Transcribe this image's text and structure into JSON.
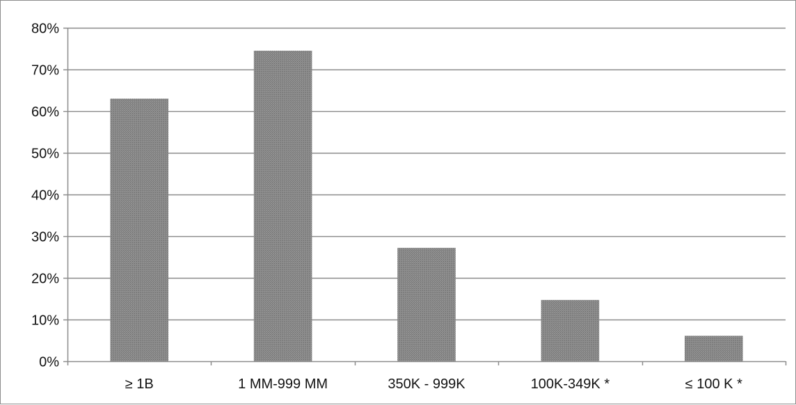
{
  "chart_data": {
    "type": "bar",
    "title": "",
    "xlabel": "",
    "ylabel": "",
    "categories": [
      "≥ 1B",
      "1 MM-999 MM",
      "350K - 999K",
      "100K-349K *",
      "≤ 100 K *"
    ],
    "values": [
      63,
      74.5,
      27.2,
      14.7,
      6.1
    ],
    "ylim": [
      0,
      80
    ],
    "y_ticks": [
      0,
      10,
      20,
      30,
      40,
      50,
      60,
      70,
      80
    ],
    "y_tick_labels": [
      "0%",
      "10%",
      "20%",
      "30%",
      "40%",
      "50%",
      "60%",
      "70%",
      "80%"
    ],
    "grid": true,
    "legend": "none",
    "colors": {
      "bar": "#8a8a8a",
      "bar_hatch": "#6e6e6e",
      "grid": "#8c8c8c",
      "axis": "#8c8c8c"
    }
  }
}
